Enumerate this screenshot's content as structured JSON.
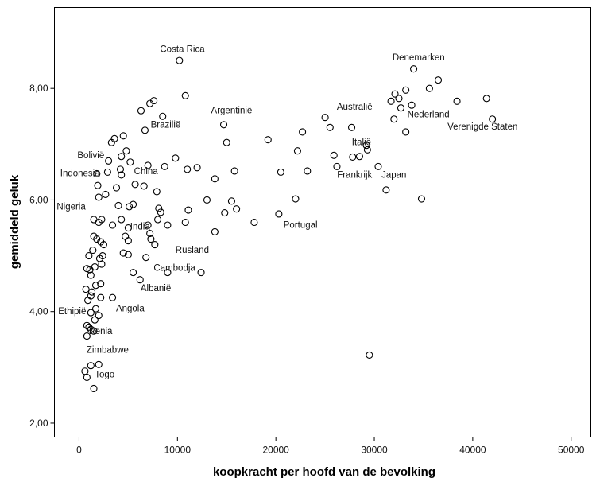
{
  "chart_data": {
    "type": "scatter",
    "xlabel": "koopkracht per hoofd van de bevolking",
    "ylabel": "gemiddeld geluk",
    "xlim": [
      -2500,
      52000
    ],
    "ylim": [
      1.75,
      9.45
    ],
    "xticks": [
      0,
      10000,
      20000,
      30000,
      40000,
      50000
    ],
    "xtick_labels": [
      "0",
      "10000",
      "20000",
      "30000",
      "40000",
      "50000"
    ],
    "yticks": [
      2,
      4,
      6,
      8
    ],
    "ytick_labels": [
      "2,00",
      "4,00",
      "6,00",
      "8,00"
    ],
    "grid": false,
    "legend": "none",
    "labels": [
      {
        "text": "Costa Rica",
        "x": 10500,
        "y": 8.65
      },
      {
        "text": "Denemarken",
        "x": 34500,
        "y": 8.5
      },
      {
        "text": "Argentinië",
        "x": 15500,
        "y": 7.55
      },
      {
        "text": "Australië",
        "x": 28000,
        "y": 7.62
      },
      {
        "text": "Nederland",
        "x": 35500,
        "y": 7.48
      },
      {
        "text": "Brazilië",
        "x": 8800,
        "y": 7.3
      },
      {
        "text": "Verenigde Staten",
        "x": 41000,
        "y": 7.26
      },
      {
        "text": "Italië",
        "x": 28700,
        "y": 6.98
      },
      {
        "text": "Bolivië",
        "x": 1200,
        "y": 6.75
      },
      {
        "text": "Frankrijk",
        "x": 28000,
        "y": 6.4
      },
      {
        "text": "Japan",
        "x": 32000,
        "y": 6.4
      },
      {
        "text": "Indonesia",
        "x": 100,
        "y": 6.43
      },
      {
        "text": "China",
        "x": 6800,
        "y": 6.46
      },
      {
        "text": "Nigeria",
        "x": -800,
        "y": 5.83
      },
      {
        "text": "India",
        "x": 6200,
        "y": 5.47
      },
      {
        "text": "Portugal",
        "x": 22500,
        "y": 5.5
      },
      {
        "text": "Rusland",
        "x": 11500,
        "y": 5.05
      },
      {
        "text": "Cambodja",
        "x": 9700,
        "y": 4.73
      },
      {
        "text": "Albanië",
        "x": 7800,
        "y": 4.37
      },
      {
        "text": "Angola",
        "x": 5200,
        "y": 4.0
      },
      {
        "text": "Ethipië",
        "x": -700,
        "y": 3.95
      },
      {
        "text": "Kenia",
        "x": 2200,
        "y": 3.6
      },
      {
        "text": "Zimbabwe",
        "x": 2900,
        "y": 3.26
      },
      {
        "text": "Togo",
        "x": 2600,
        "y": 2.82
      }
    ],
    "points": [
      {
        "x": 10200,
        "y": 8.5
      },
      {
        "x": 10800,
        "y": 7.87
      },
      {
        "x": 7600,
        "y": 7.78
      },
      {
        "x": 7200,
        "y": 7.73
      },
      {
        "x": 6300,
        "y": 7.6
      },
      {
        "x": 8500,
        "y": 7.5
      },
      {
        "x": 6700,
        "y": 7.25
      },
      {
        "x": 4500,
        "y": 7.15
      },
      {
        "x": 3600,
        "y": 7.1
      },
      {
        "x": 3300,
        "y": 7.03
      },
      {
        "x": 4800,
        "y": 6.88
      },
      {
        "x": 4300,
        "y": 6.78
      },
      {
        "x": 3000,
        "y": 6.7
      },
      {
        "x": 5200,
        "y": 6.68
      },
      {
        "x": 4200,
        "y": 6.55
      },
      {
        "x": 2900,
        "y": 6.5
      },
      {
        "x": 1800,
        "y": 6.47
      },
      {
        "x": 1900,
        "y": 6.26
      },
      {
        "x": 3800,
        "y": 6.22
      },
      {
        "x": 2700,
        "y": 6.1
      },
      {
        "x": 2000,
        "y": 6.05
      },
      {
        "x": 4300,
        "y": 6.45
      },
      {
        "x": 5700,
        "y": 6.28
      },
      {
        "x": 6600,
        "y": 6.25
      },
      {
        "x": 7000,
        "y": 6.62
      },
      {
        "x": 8700,
        "y": 6.6
      },
      {
        "x": 9800,
        "y": 6.75
      },
      {
        "x": 11000,
        "y": 6.55
      },
      {
        "x": 12000,
        "y": 6.58
      },
      {
        "x": 7900,
        "y": 6.15
      },
      {
        "x": 4000,
        "y": 5.9
      },
      {
        "x": 5100,
        "y": 5.88
      },
      {
        "x": 5500,
        "y": 5.92
      },
      {
        "x": 8100,
        "y": 5.85
      },
      {
        "x": 8300,
        "y": 5.78
      },
      {
        "x": 11100,
        "y": 5.82
      },
      {
        "x": 13000,
        "y": 6.0
      },
      {
        "x": 13800,
        "y": 6.38
      },
      {
        "x": 15800,
        "y": 6.52
      },
      {
        "x": 14800,
        "y": 5.77
      },
      {
        "x": 15500,
        "y": 5.98
      },
      {
        "x": 16000,
        "y": 5.84
      },
      {
        "x": 1500,
        "y": 5.65
      },
      {
        "x": 2000,
        "y": 5.6
      },
      {
        "x": 2300,
        "y": 5.65
      },
      {
        "x": 3400,
        "y": 5.55
      },
      {
        "x": 4300,
        "y": 5.65
      },
      {
        "x": 5000,
        "y": 5.5
      },
      {
        "x": 7000,
        "y": 5.55
      },
      {
        "x": 8000,
        "y": 5.65
      },
      {
        "x": 9000,
        "y": 5.55
      },
      {
        "x": 10800,
        "y": 5.6
      },
      {
        "x": 13800,
        "y": 5.43
      },
      {
        "x": 17800,
        "y": 5.6
      },
      {
        "x": 20300,
        "y": 5.75
      },
      {
        "x": 1500,
        "y": 5.35
      },
      {
        "x": 1800,
        "y": 5.3
      },
      {
        "x": 2200,
        "y": 5.25
      },
      {
        "x": 2500,
        "y": 5.2
      },
      {
        "x": 4700,
        "y": 5.35
      },
      {
        "x": 5000,
        "y": 5.27
      },
      {
        "x": 7200,
        "y": 5.4
      },
      {
        "x": 7300,
        "y": 5.3
      },
      {
        "x": 7700,
        "y": 5.2
      },
      {
        "x": 1400,
        "y": 5.1
      },
      {
        "x": 1000,
        "y": 5.0
      },
      {
        "x": 2100,
        "y": 4.95
      },
      {
        "x": 2400,
        "y": 5.0
      },
      {
        "x": 2300,
        "y": 4.85
      },
      {
        "x": 4500,
        "y": 5.05
      },
      {
        "x": 5000,
        "y": 5.02
      },
      {
        "x": 6800,
        "y": 4.97
      },
      {
        "x": 800,
        "y": 4.77
      },
      {
        "x": 1100,
        "y": 4.75
      },
      {
        "x": 1600,
        "y": 4.8
      },
      {
        "x": 1200,
        "y": 4.65
      },
      {
        "x": 5500,
        "y": 4.7
      },
      {
        "x": 6200,
        "y": 4.57
      },
      {
        "x": 9000,
        "y": 4.7
      },
      {
        "x": 12400,
        "y": 4.7
      },
      {
        "x": 700,
        "y": 4.4
      },
      {
        "x": 1300,
        "y": 4.35
      },
      {
        "x": 1700,
        "y": 4.47
      },
      {
        "x": 2200,
        "y": 4.5
      },
      {
        "x": 1200,
        "y": 4.28
      },
      {
        "x": 2200,
        "y": 4.25
      },
      {
        "x": 3400,
        "y": 4.25
      },
      {
        "x": 900,
        "y": 4.2
      },
      {
        "x": 1700,
        "y": 4.05
      },
      {
        "x": 1200,
        "y": 3.98
      },
      {
        "x": 2000,
        "y": 3.93
      },
      {
        "x": 1600,
        "y": 3.85
      },
      {
        "x": 800,
        "y": 3.75
      },
      {
        "x": 1000,
        "y": 3.72
      },
      {
        "x": 1200,
        "y": 3.68
      },
      {
        "x": 1500,
        "y": 3.65
      },
      {
        "x": 800,
        "y": 3.56
      },
      {
        "x": 1200,
        "y": 3.03
      },
      {
        "x": 2000,
        "y": 3.05
      },
      {
        "x": 600,
        "y": 2.93
      },
      {
        "x": 800,
        "y": 2.82
      },
      {
        "x": 1500,
        "y": 2.62
      },
      {
        "x": 29500,
        "y": 3.22
      },
      {
        "x": 34000,
        "y": 8.35
      },
      {
        "x": 36500,
        "y": 8.15
      },
      {
        "x": 33200,
        "y": 7.97
      },
      {
        "x": 35600,
        "y": 8.0
      },
      {
        "x": 32100,
        "y": 7.9
      },
      {
        "x": 32500,
        "y": 7.82
      },
      {
        "x": 31700,
        "y": 7.77
      },
      {
        "x": 33800,
        "y": 7.7
      },
      {
        "x": 32700,
        "y": 7.65
      },
      {
        "x": 38400,
        "y": 7.77
      },
      {
        "x": 41400,
        "y": 7.82
      },
      {
        "x": 42000,
        "y": 7.45
      },
      {
        "x": 32000,
        "y": 7.45
      },
      {
        "x": 33200,
        "y": 7.22
      },
      {
        "x": 25000,
        "y": 7.48
      },
      {
        "x": 25500,
        "y": 7.3
      },
      {
        "x": 27700,
        "y": 7.3
      },
      {
        "x": 22700,
        "y": 7.22
      },
      {
        "x": 14700,
        "y": 7.35
      },
      {
        "x": 15000,
        "y": 7.03
      },
      {
        "x": 19200,
        "y": 7.08
      },
      {
        "x": 22200,
        "y": 6.88
      },
      {
        "x": 25900,
        "y": 6.8
      },
      {
        "x": 27800,
        "y": 6.77
      },
      {
        "x": 28500,
        "y": 6.78
      },
      {
        "x": 29200,
        "y": 6.98
      },
      {
        "x": 29300,
        "y": 6.9
      },
      {
        "x": 26200,
        "y": 6.6
      },
      {
        "x": 30400,
        "y": 6.6
      },
      {
        "x": 20500,
        "y": 6.5
      },
      {
        "x": 23200,
        "y": 6.52
      },
      {
        "x": 31200,
        "y": 6.18
      },
      {
        "x": 22000,
        "y": 6.02
      },
      {
        "x": 34800,
        "y": 6.02
      }
    ]
  }
}
